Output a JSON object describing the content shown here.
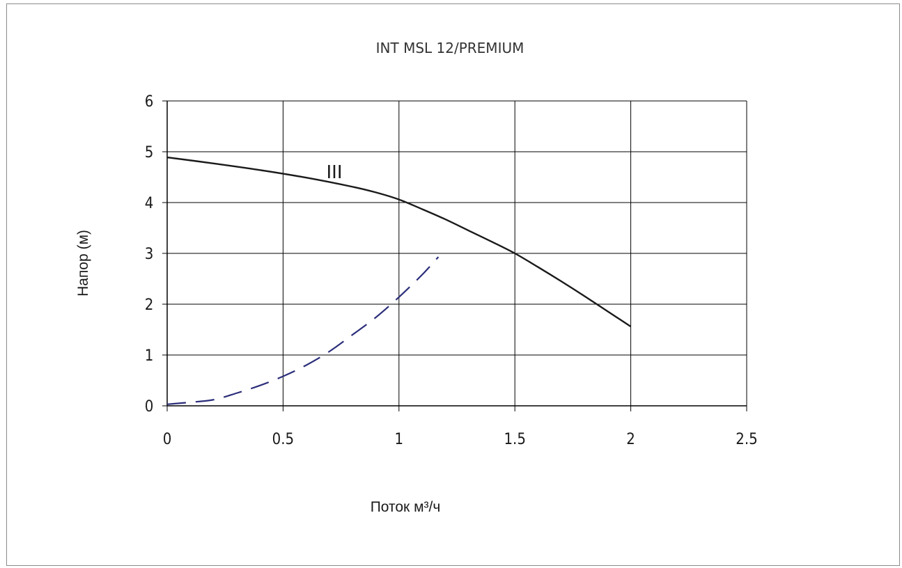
{
  "chart_data": {
    "type": "line",
    "title": "INT MSL 12/PREMIUM",
    "xlabel": "Поток м³/ч",
    "ylabel": "Напор (м)",
    "xlim": [
      0,
      2.5
    ],
    "ylim": [
      0,
      6
    ],
    "x_ticks": [
      "0",
      "0.5",
      "1",
      "1.5",
      "2",
      "2.5"
    ],
    "y_ticks": [
      "0",
      "1",
      "2",
      "3",
      "4",
      "5",
      "6"
    ],
    "grid": true,
    "colors": {
      "pump_curve": "#1a1a1a",
      "system_curve": "#2b2e7a",
      "grid": "#000000"
    },
    "series": [
      {
        "name": "III",
        "style": "solid",
        "x": [
          0,
          0.2,
          0.4,
          0.6,
          0.8,
          0.9,
          1.0,
          1.1,
          1.2,
          1.3,
          1.4,
          1.5,
          1.6,
          1.7,
          1.8,
          1.9,
          2.0
        ],
        "y": [
          4.89,
          4.77,
          4.64,
          4.49,
          4.31,
          4.2,
          4.06,
          3.87,
          3.67,
          3.45,
          3.23,
          3.0,
          2.73,
          2.45,
          2.16,
          1.86,
          1.56
        ]
      },
      {
        "style": "dashed",
        "x": [
          0,
          0.1,
          0.2,
          0.3,
          0.4,
          0.5,
          0.6,
          0.7,
          0.8,
          0.9,
          1.0,
          1.1,
          1.17
        ],
        "y": [
          0.03,
          0.07,
          0.12,
          0.25,
          0.4,
          0.58,
          0.8,
          1.07,
          1.4,
          1.74,
          2.14,
          2.58,
          2.93
        ]
      }
    ]
  }
}
